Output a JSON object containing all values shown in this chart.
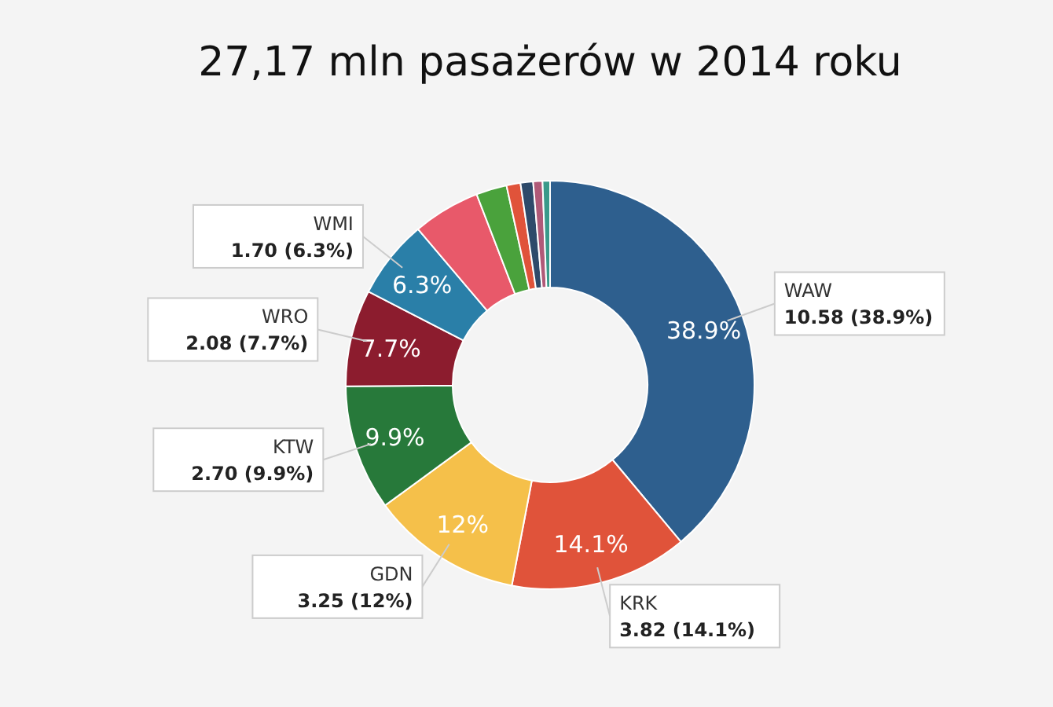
{
  "chart_data": {
    "type": "donut",
    "title": "27,17 mln pasażerów w 2014 roku",
    "categories": [
      "WAW",
      "KRK",
      "GDN",
      "KTW",
      "WRO",
      "WMI",
      null,
      null,
      null,
      null,
      null,
      null
    ],
    "values": [
      10.58,
      3.82,
      3.25,
      2.7,
      2.08,
      1.7,
      1.45,
      0.66,
      0.3,
      0.27,
      0.2,
      0.16
    ],
    "colors": [
      "#2e5f8e",
      "#e0533a",
      "#f5c04a",
      "#27793a",
      "#8c1c2e",
      "#2a7fa8",
      "#e8596a",
      "#4aa23c",
      "#e0533a",
      "#2e4a6a",
      "#b05a78",
      "#3a9a8a"
    ],
    "value_labels": [
      "10.58 (38.9%)",
      "3.82 (14.1%)",
      "3.25 (12%)",
      "2.70 (9.9%)",
      "2.08 (7.7%)",
      "1.70 (6.3%)",
      null,
      null,
      null,
      null,
      null,
      null
    ],
    "annotations": [
      "38.9%",
      "14.1%",
      "12%",
      "9.9%",
      "7.7%",
      "6.3%"
    ]
  }
}
